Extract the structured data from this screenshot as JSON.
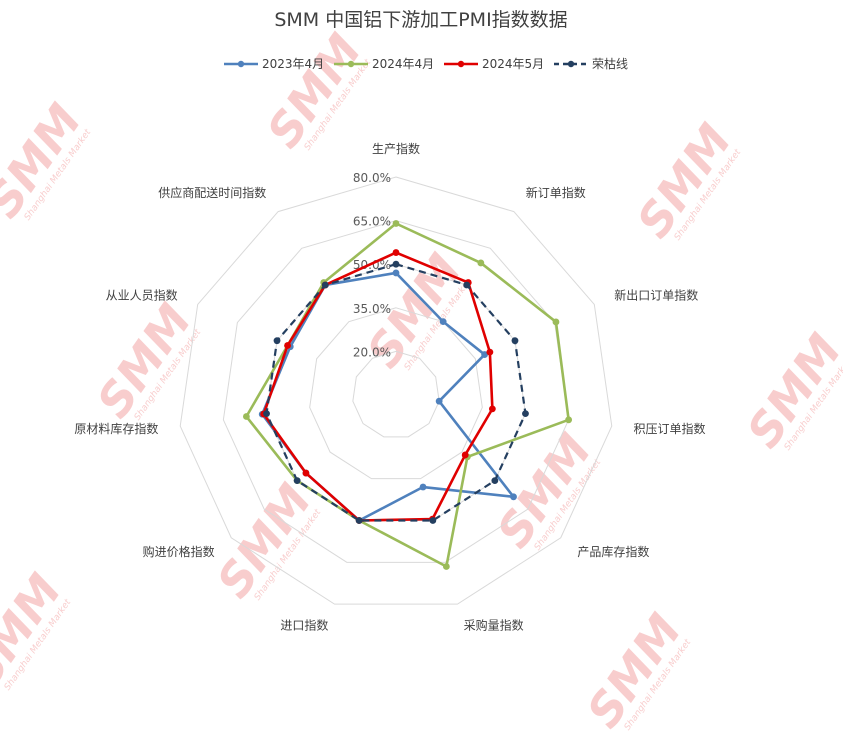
{
  "chart_data": {
    "type": "radar",
    "title": "SMM 中国铝下游加工PMI指数数据",
    "categories": [
      "生产指数",
      "新订单指数",
      "新出口订单指数",
      "积压订单指数",
      "产品库存指数",
      "采购量指数",
      "进口指数",
      "购进价格指数",
      "原材料库存指数",
      "从业人员指数",
      "供应商配送时间指数"
    ],
    "rlim": [
      5,
      80
    ],
    "ticks": [
      {
        "value": 20,
        "label": "20.0%"
      },
      {
        "value": 35,
        "label": "35.0%"
      },
      {
        "value": 50,
        "label": "50.0%"
      },
      {
        "value": 65,
        "label": "65.0%"
      },
      {
        "value": 80,
        "label": "80.0%"
      }
    ],
    "grid": true,
    "legend_position": "top",
    "series": [
      {
        "name": "2023年4月",
        "color": "#4f81bd",
        "dash": false,
        "values": [
          47.0,
          35.0,
          38.5,
          20.0,
          58.5,
          38.0,
          50.0,
          46.0,
          51.5,
          45.0,
          50.0
        ]
      },
      {
        "name": "2024年4月",
        "color": "#9bbb59",
        "dash": false,
        "values": [
          64.0,
          59.0,
          65.5,
          65.0,
          37.5,
          66.5,
          50.0,
          50.0,
          57.0,
          46.0,
          51.0
        ]
      },
      {
        "name": "2024年5月",
        "color": "#e00000",
        "dash": false,
        "values": [
          54.0,
          51.0,
          40.5,
          38.5,
          36.5,
          49.5,
          50.0,
          46.0,
          51.0,
          46.0,
          50.0
        ]
      },
      {
        "name": "荣枯线",
        "color": "#243f60",
        "dash": true,
        "values": [
          50,
          50,
          50,
          50,
          50,
          50,
          50,
          50,
          50,
          50,
          50
        ]
      }
    ]
  },
  "watermark": {
    "text": "SMM",
    "subtext": "Shanghai Metals Market"
  }
}
